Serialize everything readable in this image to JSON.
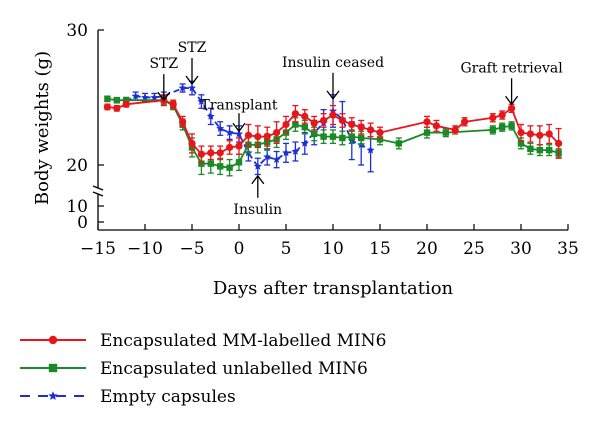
{
  "chart_data": {
    "type": "line",
    "xlabel": "Days after transplantation",
    "ylabel": "Body weights (g)",
    "x_ticks": [
      -15,
      -10,
      -5,
      0,
      5,
      10,
      15,
      20,
      25,
      30,
      35
    ],
    "y_ticks_lower": [
      0,
      10
    ],
    "y_ticks_upper": [
      20,
      30
    ],
    "xlim": [
      -15,
      35
    ],
    "ylim_upper": [
      18,
      30
    ],
    "ylim_lower": [
      0,
      12
    ],
    "axis_break": "y between 10 and 20",
    "grid": false,
    "legend_position": "below plot",
    "series": [
      {
        "name": "Encapsulated MM-labelled MIN6",
        "color": "#e8161b",
        "marker": "circle",
        "line": "solid",
        "points": [
          {
            "x": -14,
            "y": 24.3,
            "err": 0.2
          },
          {
            "x": -13,
            "y": 24.2,
            "err": 0.2
          },
          {
            "x": -12,
            "y": 24.5,
            "err": 0.2
          },
          {
            "x": -8,
            "y": 24.8,
            "err": 0.4
          },
          {
            "x": -7,
            "y": 24.5,
            "err": 0.3
          },
          {
            "x": -6,
            "y": 23.2,
            "err": 0.4
          },
          {
            "x": -5,
            "y": 21.6,
            "err": 0.7
          },
          {
            "x": -4,
            "y": 20.8,
            "err": 0.6
          },
          {
            "x": -3,
            "y": 20.9,
            "err": 0.5
          },
          {
            "x": -2,
            "y": 20.9,
            "err": 0.5
          },
          {
            "x": -1,
            "y": 21.3,
            "err": 0.5
          },
          {
            "x": 0,
            "y": 21.4,
            "err": 0.6
          },
          {
            "x": 1,
            "y": 22.2,
            "err": 0.8
          },
          {
            "x": 2,
            "y": 22.1,
            "err": 0.8
          },
          {
            "x": 3,
            "y": 22.1,
            "err": 0.7
          },
          {
            "x": 4,
            "y": 22.4,
            "err": 0.8
          },
          {
            "x": 5,
            "y": 23.0,
            "err": 0.6
          },
          {
            "x": 6,
            "y": 23.8,
            "err": 0.6
          },
          {
            "x": 7,
            "y": 23.6,
            "err": 0.5
          },
          {
            "x": 8,
            "y": 23.1,
            "err": 0.5
          },
          {
            "x": 9,
            "y": 23.3,
            "err": 0.5
          },
          {
            "x": 10,
            "y": 23.7,
            "err": 0.7
          },
          {
            "x": 11,
            "y": 23.3,
            "err": 0.5
          },
          {
            "x": 12,
            "y": 23.0,
            "err": 0.5
          },
          {
            "x": 13,
            "y": 22.8,
            "err": 0.5
          },
          {
            "x": 14,
            "y": 22.6,
            "err": 0.5
          },
          {
            "x": 15,
            "y": 22.4,
            "err": 0.4
          },
          {
            "x": 20,
            "y": 23.2,
            "err": 0.4
          },
          {
            "x": 21,
            "y": 22.9,
            "err": 0.4
          },
          {
            "x": 23,
            "y": 22.6,
            "err": 0.3
          },
          {
            "x": 24,
            "y": 23.2,
            "err": 0.3
          },
          {
            "x": 27,
            "y": 23.5,
            "err": 0.3
          },
          {
            "x": 28,
            "y": 23.7,
            "err": 0.3
          },
          {
            "x": 29,
            "y": 24.2,
            "err": 0.3
          },
          {
            "x": 30,
            "y": 22.4,
            "err": 0.6
          },
          {
            "x": 31,
            "y": 22.3,
            "err": 0.6
          },
          {
            "x": 32,
            "y": 22.2,
            "err": 0.7
          },
          {
            "x": 33,
            "y": 22.3,
            "err": 0.7
          },
          {
            "x": 34,
            "y": 21.6,
            "err": 1.1
          }
        ]
      },
      {
        "name": "Encapsulated unlabelled MIN6",
        "color": "#1a8a24",
        "marker": "square",
        "line": "solid",
        "points": [
          {
            "x": -14,
            "y": 24.9,
            "err": 0.2
          },
          {
            "x": -13,
            "y": 24.8,
            "err": 0.2
          },
          {
            "x": -12,
            "y": 24.8,
            "err": 0.2
          },
          {
            "x": -8,
            "y": 24.8,
            "err": 0.3
          },
          {
            "x": -7,
            "y": 24.4,
            "err": 0.3
          },
          {
            "x": -6,
            "y": 23.0,
            "err": 0.4
          },
          {
            "x": -5,
            "y": 21.3,
            "err": 0.7
          },
          {
            "x": -4,
            "y": 20.1,
            "err": 0.8
          },
          {
            "x": -3,
            "y": 20.1,
            "err": 0.7
          },
          {
            "x": -2,
            "y": 19.9,
            "err": 0.6
          },
          {
            "x": -1,
            "y": 19.8,
            "err": 0.6
          },
          {
            "x": 0,
            "y": 20.2,
            "err": 0.6
          },
          {
            "x": 1,
            "y": 21.5,
            "err": 0.6
          },
          {
            "x": 2,
            "y": 21.5,
            "err": 0.6
          },
          {
            "x": 3,
            "y": 21.7,
            "err": 0.6
          },
          {
            "x": 4,
            "y": 21.9,
            "err": 0.6
          },
          {
            "x": 5,
            "y": 22.4,
            "err": 0.5
          },
          {
            "x": 6,
            "y": 23.0,
            "err": 0.5
          },
          {
            "x": 7,
            "y": 22.8,
            "err": 0.5
          },
          {
            "x": 8,
            "y": 22.3,
            "err": 0.5
          },
          {
            "x": 9,
            "y": 22.1,
            "err": 0.5
          },
          {
            "x": 10,
            "y": 22.1,
            "err": 0.5
          },
          {
            "x": 11,
            "y": 22.0,
            "err": 0.5
          },
          {
            "x": 12,
            "y": 22.1,
            "err": 0.5
          },
          {
            "x": 13,
            "y": 22.0,
            "err": 0.5
          },
          {
            "x": 15,
            "y": 21.9,
            "err": 0.4
          },
          {
            "x": 17,
            "y": 21.6,
            "err": 0.4
          },
          {
            "x": 20,
            "y": 22.4,
            "err": 0.4
          },
          {
            "x": 22,
            "y": 22.4,
            "err": 0.3
          },
          {
            "x": 27,
            "y": 22.6,
            "err": 0.3
          },
          {
            "x": 28,
            "y": 22.8,
            "err": 0.3
          },
          {
            "x": 29,
            "y": 22.9,
            "err": 0.3
          },
          {
            "x": 30,
            "y": 21.6,
            "err": 0.4
          },
          {
            "x": 31,
            "y": 21.2,
            "err": 0.4
          },
          {
            "x": 32,
            "y": 21.1,
            "err": 0.4
          },
          {
            "x": 33,
            "y": 21.1,
            "err": 0.4
          },
          {
            "x": 34,
            "y": 20.9,
            "err": 0.3
          }
        ]
      },
      {
        "name": "Empty capsules",
        "color": "#1c2ed8",
        "marker": "star",
        "line": "dashed",
        "points": [
          {
            "x": -12,
            "y": 24.7,
            "err": 0.3
          },
          {
            "x": -11,
            "y": 25.1,
            "err": 0.3
          },
          {
            "x": -10,
            "y": 25.0,
            "err": 0.3
          },
          {
            "x": -9,
            "y": 25.0,
            "err": 0.3
          },
          {
            "x": -8,
            "y": 25.1,
            "err": 0.3
          },
          {
            "x": -6,
            "y": 25.7,
            "err": 0.3
          },
          {
            "x": -5,
            "y": 25.7,
            "err": 0.5
          },
          {
            "x": -4,
            "y": 24.7,
            "err": 0.5
          },
          {
            "x": -3,
            "y": 23.6,
            "err": 0.6
          },
          {
            "x": -2,
            "y": 22.7,
            "err": 0.5
          },
          {
            "x": -1,
            "y": 22.4,
            "err": 0.5
          },
          {
            "x": 0,
            "y": 22.3,
            "err": 0.6
          },
          {
            "x": 1,
            "y": 20.9,
            "err": 0.6
          },
          {
            "x": 2,
            "y": 19.9,
            "err": 0.6
          },
          {
            "x": 3,
            "y": 20.6,
            "err": 0.6
          },
          {
            "x": 4,
            "y": 20.4,
            "err": 0.6
          },
          {
            "x": 5,
            "y": 20.9,
            "err": 0.7
          },
          {
            "x": 6,
            "y": 21.0,
            "err": 0.7
          },
          {
            "x": 7,
            "y": 21.6,
            "err": 0.8
          },
          {
            "x": 8,
            "y": 22.4,
            "err": 0.9
          },
          {
            "x": 9,
            "y": 23.1,
            "err": 1.0
          },
          {
            "x": 10,
            "y": 24.0,
            "err": 1.2
          },
          {
            "x": 11,
            "y": 23.4,
            "err": 1.3
          },
          {
            "x": 12,
            "y": 21.8,
            "err": 1.4
          },
          {
            "x": 13,
            "y": 21.5,
            "err": 1.5
          },
          {
            "x": 14,
            "y": 21.1,
            "err": 1.6
          }
        ]
      }
    ],
    "annotations": [
      {
        "text": "STZ",
        "x": -8,
        "arrow_to_y": 24.8,
        "direction": "down"
      },
      {
        "text": "STZ",
        "x": -5,
        "arrow_to_y": 26.0,
        "direction": "down"
      },
      {
        "text": "Transplant",
        "x": 0,
        "arrow_to_y": 22.5,
        "direction": "down"
      },
      {
        "text": "Insulin",
        "x": 2,
        "arrow_to_y": 19.2,
        "direction": "up"
      },
      {
        "text": "Insulin ceased",
        "x": 10,
        "arrow_to_y": 24.9,
        "direction": "down"
      },
      {
        "text": "Graft retrieval",
        "x": 29,
        "arrow_to_y": 24.5,
        "direction": "down"
      }
    ]
  }
}
